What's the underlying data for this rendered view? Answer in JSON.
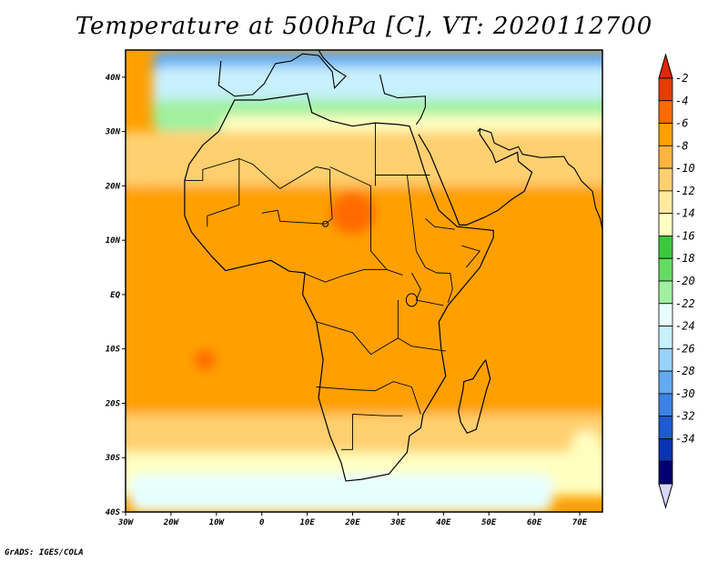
{
  "title": "Temperature at 500hPa [C], VT: 2020112700",
  "credit": "GrADS: IGES/COLA",
  "axes": {
    "lon_ticks": [
      "30W",
      "20W",
      "10W",
      "0",
      "10E",
      "20E",
      "30E",
      "40E",
      "50E",
      "60E",
      "70E"
    ],
    "lat_ticks": [
      "40N",
      "30N",
      "20N",
      "10N",
      "EQ",
      "10S",
      "20S",
      "30S",
      "40S"
    ]
  },
  "colorbar": {
    "labels": [
      "-2",
      "-4",
      "-6",
      "-8",
      "-10",
      "-12",
      "-14",
      "-16",
      "-18",
      "-20",
      "-22",
      "-24",
      "-26",
      "-28",
      "-30",
      "-32",
      "-34"
    ],
    "colors": [
      "#e83c00",
      "#ff6a00",
      "#ffa000",
      "#ffb540",
      "#ffd070",
      "#ffeaa0",
      "#ffffc0",
      "#3cc83c",
      "#64dc64",
      "#a0f0a0",
      "#e6ffff",
      "#c8f0ff",
      "#96d2fa",
      "#64aaf0",
      "#3c82e6",
      "#1e5ad2",
      "#0a32b4",
      "#000070"
    ],
    "top_arrow_color": "#e02800",
    "bottom_arrow_color": "#d8d8ff"
  },
  "chart_data": {
    "type": "heatmap",
    "title": "Temperature at 500hPa [C], VT: 2020112700",
    "variable": "Temperature at 500hPa",
    "unit": "C",
    "valid_time": "2020112700",
    "lon_range": [
      -30,
      75
    ],
    "lat_range": [
      -40,
      45
    ],
    "levels": [
      -34,
      -32,
      -30,
      -28,
      -26,
      -24,
      -22,
      -20,
      -18,
      -16,
      -14,
      -12,
      -10,
      -8,
      -6,
      -4,
      -2
    ],
    "fields": [
      {
        "name": "field-far-north",
        "lon": [
          -20,
          75
        ],
        "lat": [
          38,
          45
        ],
        "value": -26
      },
      {
        "name": "field-north-cold",
        "lon": [
          -20,
          75
        ],
        "lat": [
          33,
          42
        ],
        "value": -22
      },
      {
        "name": "field-north-cool",
        "lon": [
          -20,
          75
        ],
        "lat": [
          30,
          36
        ],
        "value": -18
      },
      {
        "name": "field-green-band",
        "lon": [
          -5,
          75
        ],
        "lat": [
          26,
          33
        ],
        "value": -13
      },
      {
        "name": "field-atlantic-green",
        "lon": [
          -30,
          -25
        ],
        "lat": [
          18,
          26
        ],
        "value": -13
      },
      {
        "name": "field-sahara-yellow",
        "lon": [
          -30,
          75
        ],
        "lat": [
          20,
          30
        ],
        "value": -9
      },
      {
        "name": "field-tropics",
        "lon": [
          -30,
          75
        ],
        "lat": [
          -25,
          20
        ],
        "value": -5
      },
      {
        "name": "field-sahel-warm",
        "lon": [
          15,
          25
        ],
        "lat": [
          11,
          19
        ],
        "value": -3
      },
      {
        "name": "field-atlantic-warm",
        "lon": [
          -15,
          -10
        ],
        "lat": [
          -14,
          -10
        ],
        "value": -3
      },
      {
        "name": "field-south-yellow",
        "lon": [
          -30,
          75
        ],
        "lat": [
          -31,
          -22
        ],
        "value": -9
      },
      {
        "name": "field-south-green",
        "lon": [
          -30,
          75
        ],
        "lat": [
          -37,
          -29
        ],
        "value": -13
      },
      {
        "name": "field-south-cool",
        "lon": [
          -25,
          60
        ],
        "lat": [
          -40,
          -33
        ],
        "value": -21
      },
      {
        "name": "field-east-green",
        "lon": [
          68,
          75
        ],
        "lat": [
          -32,
          -25
        ],
        "value": -13
      }
    ]
  }
}
